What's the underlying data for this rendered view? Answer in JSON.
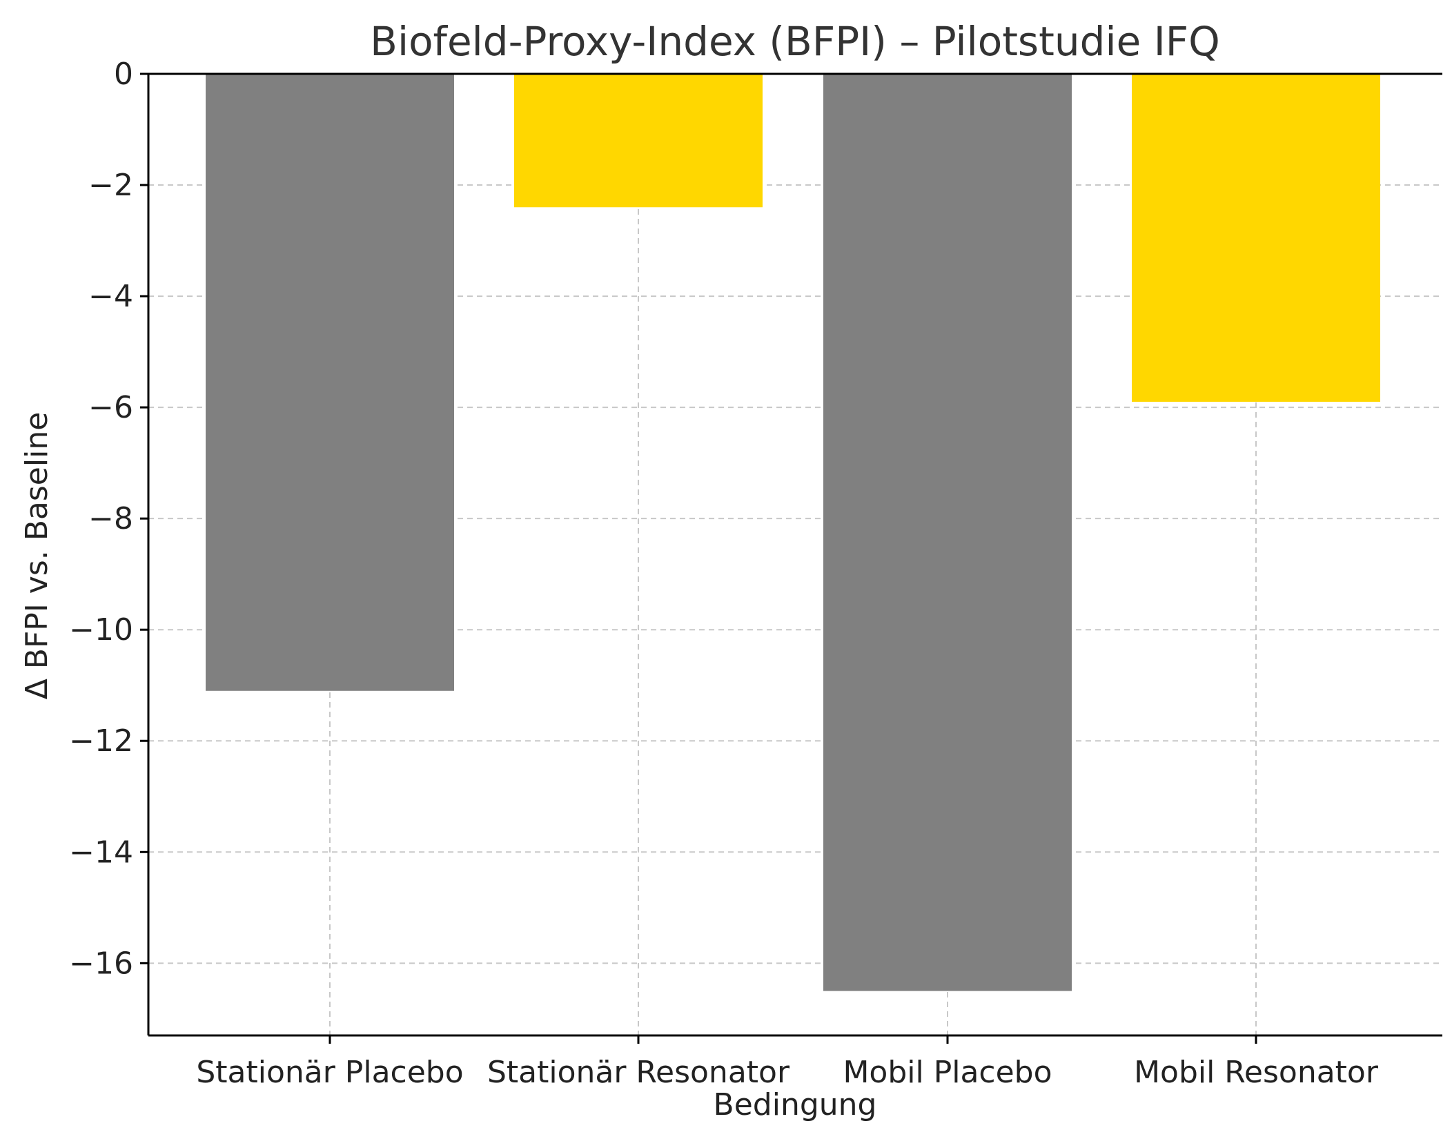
{
  "chart_data": {
    "type": "bar",
    "title": "Biofeld-Proxy-Index (BFPI) – Pilotstudie IFQ",
    "xlabel": "Bedingung",
    "ylabel": "Δ BFPI vs. Baseline",
    "categories": [
      "Stationär Placebo",
      "Stationär Resonator",
      "Mobil Placebo",
      "Mobil Resonator"
    ],
    "values": [
      -11.1,
      -2.4,
      -16.5,
      -5.9
    ],
    "bar_colors": [
      "#808080",
      "#FFD700",
      "#808080",
      "#FFD700"
    ],
    "ylim": [
      -17.3,
      0
    ],
    "yticks": [
      0,
      -2,
      -4,
      -6,
      -8,
      -10,
      -12,
      -14,
      -16
    ],
    "ytick_labels": [
      "0",
      "−2",
      "−4",
      "−6",
      "−8",
      "−10",
      "−12",
      "−14",
      "−16"
    ],
    "grid": true
  }
}
